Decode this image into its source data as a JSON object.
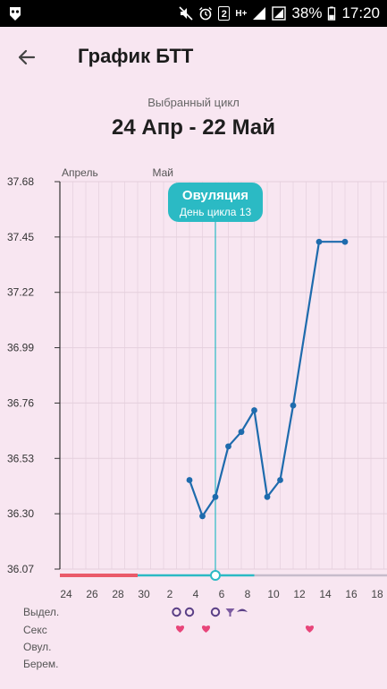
{
  "status_bar": {
    "battery": "38%",
    "time": "17:20",
    "sim": "2",
    "network": "H+"
  },
  "header": {
    "title": "График БТТ"
  },
  "cycle": {
    "caption": "Выбранный цикл",
    "range": "24 Апр - 22 Май"
  },
  "chart_data": {
    "type": "line",
    "ylim": [
      36.07,
      37.68
    ],
    "y_ticks": [
      "37.68",
      "37.45",
      "37.22",
      "36.99",
      "36.76",
      "36.53",
      "36.30",
      "36.07"
    ],
    "month_labels": [
      {
        "label": "Апрель",
        "day_index": 0
      },
      {
        "label": "Май",
        "day_index": 7
      }
    ],
    "x_tick_labels": [
      "24",
      "26",
      "28",
      "30",
      "2",
      "4",
      "6",
      "8",
      "10",
      "12",
      "14",
      "16",
      "18"
    ],
    "series": [
      {
        "days": [
          10,
          11,
          12,
          13,
          14,
          15,
          16,
          17,
          18,
          20,
          22
        ],
        "values": [
          36.44,
          36.29,
          36.37,
          36.58,
          36.64,
          36.73,
          36.37,
          36.44,
          36.75,
          37.43,
          37.43
        ],
        "color": "#1e6bad"
      }
    ],
    "ovulation": {
      "title": "Овуляция",
      "subtitle": "День цикла 13",
      "day_index": 12
    },
    "phases": {
      "menstruation_end_day": 6,
      "fertile_end_day": 15,
      "colors": {
        "menstruation": "#ea5a6a",
        "fertile": "#2bbac4",
        "rest": "#c7bccb"
      }
    }
  },
  "legend": {
    "rows": [
      "Выдел.",
      "Секс",
      "Овул.",
      "Берем."
    ]
  },
  "markers": {
    "discharge_days": [
      9,
      10,
      12
    ],
    "sex_days": [
      9,
      11,
      19
    ]
  },
  "colors": {
    "background": "#f8e6f1",
    "line": "#1e6bad",
    "ovulation_badge": "#2bbac4",
    "heart": "#e8457a",
    "ring": "#5a3f86"
  }
}
